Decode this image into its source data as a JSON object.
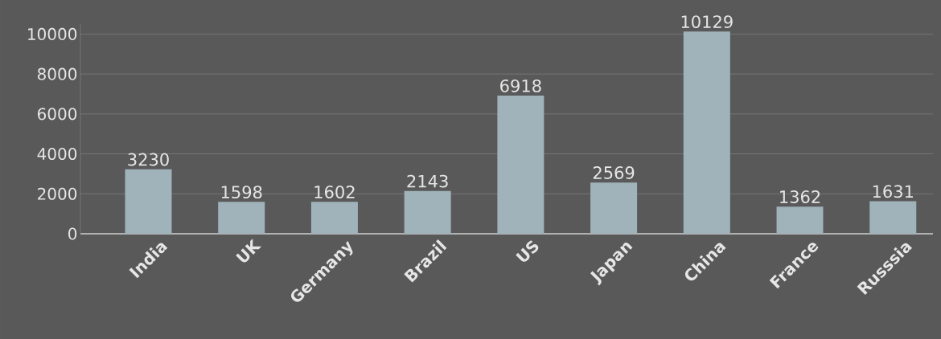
{
  "chart_data": {
    "type": "bar",
    "categories": [
      "India",
      "UK",
      "Germany",
      "Brazil",
      "US",
      "Japan",
      "China",
      "France",
      "Russsia"
    ],
    "values": [
      3230,
      1598,
      1602,
      2143,
      6918,
      2569,
      10129,
      1362,
      1631
    ],
    "color": "#a0b3ba",
    "ylim": [
      0,
      10500
    ],
    "yticks": [
      0,
      2000,
      4000,
      6000,
      8000,
      10000
    ],
    "grid": "y",
    "data_labels": true
  }
}
